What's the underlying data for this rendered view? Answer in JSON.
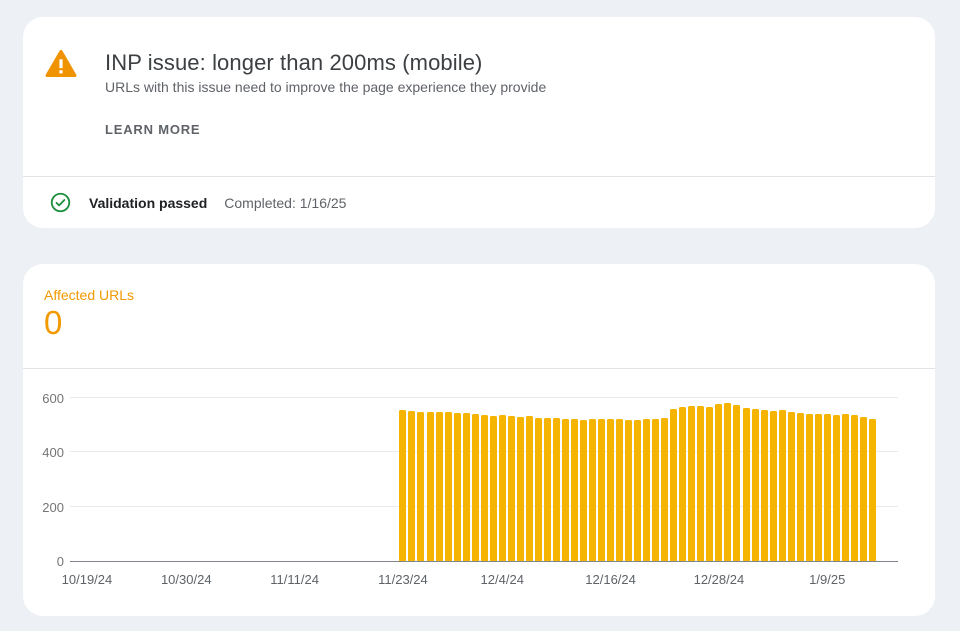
{
  "issue_card": {
    "title": "INP issue: longer than 200ms (mobile)",
    "subtitle": "URLs with this issue need to improve the page experience they provide",
    "learn_more_label": "LEARN MORE"
  },
  "validation": {
    "status_label": "Validation passed",
    "completed_text": "Completed: 1/16/25"
  },
  "metrics": {
    "affected_urls_label": "Affected URLs",
    "affected_urls_value": "0"
  },
  "colors": {
    "warning_amber": "#F09300",
    "success_green": "#1E8E3E",
    "accent_orange": "#F29900",
    "bar_yellow": "#F5B400",
    "page_background": "#EDF0F5"
  },
  "chart_data": {
    "type": "bar",
    "title": "Affected URLs",
    "xlabel": "",
    "ylabel": "",
    "ylim": [
      0,
      600
    ],
    "yticks": [
      0,
      200,
      400,
      600
    ],
    "grid": true,
    "legend": false,
    "bar_color": "#F5B400",
    "x_start": "10/17/24",
    "x_end": "1/16/25",
    "xtick_labels": [
      "10/19/24",
      "10/30/24",
      "11/11/24",
      "11/23/24",
      "12/4/24",
      "12/16/24",
      "12/28/24",
      "1/9/25"
    ],
    "dates": [
      "11/23/24",
      "11/24/24",
      "11/25/24",
      "11/26/24",
      "11/27/24",
      "11/28/24",
      "11/29/24",
      "11/30/24",
      "12/1/24",
      "12/2/24",
      "12/3/24",
      "12/4/24",
      "12/5/24",
      "12/6/24",
      "12/7/24",
      "12/8/24",
      "12/9/24",
      "12/10/24",
      "12/11/24",
      "12/12/24",
      "12/13/24",
      "12/14/24",
      "12/15/24",
      "12/16/24",
      "12/17/24",
      "12/18/24",
      "12/19/24",
      "12/20/24",
      "12/21/24",
      "12/22/24",
      "12/23/24",
      "12/24/24",
      "12/25/24",
      "12/26/24",
      "12/27/24",
      "12/28/24",
      "12/29/24",
      "12/30/24",
      "12/31/24",
      "1/1/25",
      "1/2/25",
      "1/3/25",
      "1/4/25",
      "1/5/25",
      "1/6/25",
      "1/7/25",
      "1/8/25",
      "1/9/25",
      "1/10/25",
      "1/11/25",
      "1/12/25",
      "1/13/25",
      "1/14/25"
    ],
    "values": [
      557,
      553,
      549,
      547,
      549,
      547,
      544,
      546,
      541,
      536,
      533,
      536,
      533,
      530,
      532,
      528,
      526,
      525,
      523,
      522,
      520,
      521,
      523,
      524,
      522,
      520,
      519,
      521,
      523,
      526,
      560,
      566,
      571,
      569,
      567,
      578,
      580,
      573,
      564,
      559,
      556,
      553,
      556,
      549,
      546,
      543,
      543,
      541,
      539,
      541,
      536,
      529,
      521
    ]
  }
}
